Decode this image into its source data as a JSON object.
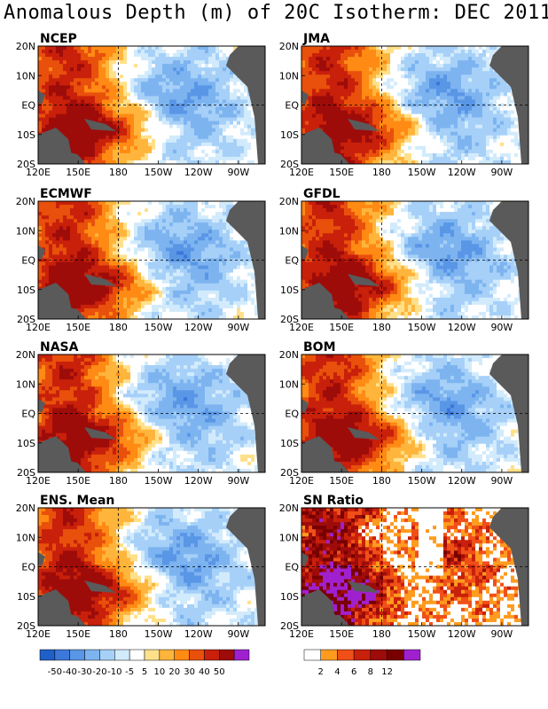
{
  "title": "Anomalous Depth (m) of 20C Isotherm: DEC 2011",
  "colors": {
    "anomaly_scale": [
      "#1F5FC8",
      "#3C78D8",
      "#5A96E6",
      "#7DB4F0",
      "#A6D0F8",
      "#D2EBFC",
      "#FFFFFF",
      "#FFE08A",
      "#FFB53C",
      "#FF8A14",
      "#E8500C",
      "#C8200A",
      "#9E0C0A",
      "#780000",
      "#A020D0"
    ],
    "sn_scale": [
      "#FFFFFF",
      "#FF9B1E",
      "#F05018",
      "#C8200A",
      "#9E0C0A",
      "#780000",
      "#A020D0"
    ],
    "land": "#5A5A5A"
  },
  "chart_data": [
    {
      "type": "heatmap",
      "title": "NCEP",
      "field": "anomalous depth of 20C isotherm (m)",
      "x_ticks": [
        "120E",
        "150E",
        "180",
        "150W",
        "120W",
        "90W"
      ],
      "y_ticks": [
        "20N",
        "10N",
        "EQ",
        "10S",
        "20S"
      ],
      "pattern": "positive anomalies 20-50 m in western Pacific, negative -10 to -40 m in central/eastern Pacific"
    },
    {
      "type": "heatmap",
      "title": "JMA",
      "x_ticks": [
        "120E",
        "150E",
        "180",
        "150W",
        "120W",
        "90W"
      ],
      "y_ticks": [
        "20N",
        "10N",
        "EQ",
        "10S",
        "20S"
      ]
    },
    {
      "type": "heatmap",
      "title": "ECMWF",
      "x_ticks": [
        "120E",
        "150E",
        "180",
        "150W",
        "120W",
        "90W"
      ],
      "y_ticks": [
        "20N",
        "10N",
        "EQ",
        "10S",
        "20S"
      ]
    },
    {
      "type": "heatmap",
      "title": "GFDL",
      "x_ticks": [
        "120E",
        "150E",
        "180",
        "150W",
        "120W",
        "90W"
      ],
      "y_ticks": [
        "20N",
        "10N",
        "EQ",
        "10S",
        "20S"
      ]
    },
    {
      "type": "heatmap",
      "title": "NASA",
      "x_ticks": [
        "120E",
        "150E",
        "180",
        "150W",
        "120W",
        "90W"
      ],
      "y_ticks": [
        "20N",
        "10N",
        "EQ",
        "10S",
        "20S"
      ]
    },
    {
      "type": "heatmap",
      "title": "BOM",
      "x_ticks": [
        "120E",
        "150E",
        "180",
        "150W",
        "120W",
        "90W"
      ],
      "y_ticks": [
        "20N",
        "10N",
        "EQ",
        "10S",
        "20S"
      ]
    },
    {
      "type": "heatmap",
      "title": "ENS. Mean",
      "x_ticks": [
        "120E",
        "150E",
        "180",
        "150W",
        "120W",
        "90W"
      ],
      "y_ticks": [
        "20N",
        "10N",
        "EQ",
        "10S",
        "20S"
      ]
    },
    {
      "type": "heatmap",
      "title": "SN Ratio",
      "x_ticks": [
        "120E",
        "150E",
        "180",
        "150W",
        "120W",
        "90W"
      ],
      "y_ticks": [
        "20N",
        "10N",
        "EQ",
        "10S",
        "20S"
      ],
      "pattern": "high signal-to-noise (4-12+) scattered across western and eastern tropical Pacific"
    }
  ],
  "colorbars": [
    {
      "labels": [
        "-50",
        "-40",
        "-30",
        "-20",
        "-10",
        "-5",
        "5",
        "10",
        "20",
        "30",
        "40",
        "50"
      ]
    },
    {
      "labels": [
        "2",
        "4",
        "6",
        "8",
        "12"
      ]
    }
  ]
}
